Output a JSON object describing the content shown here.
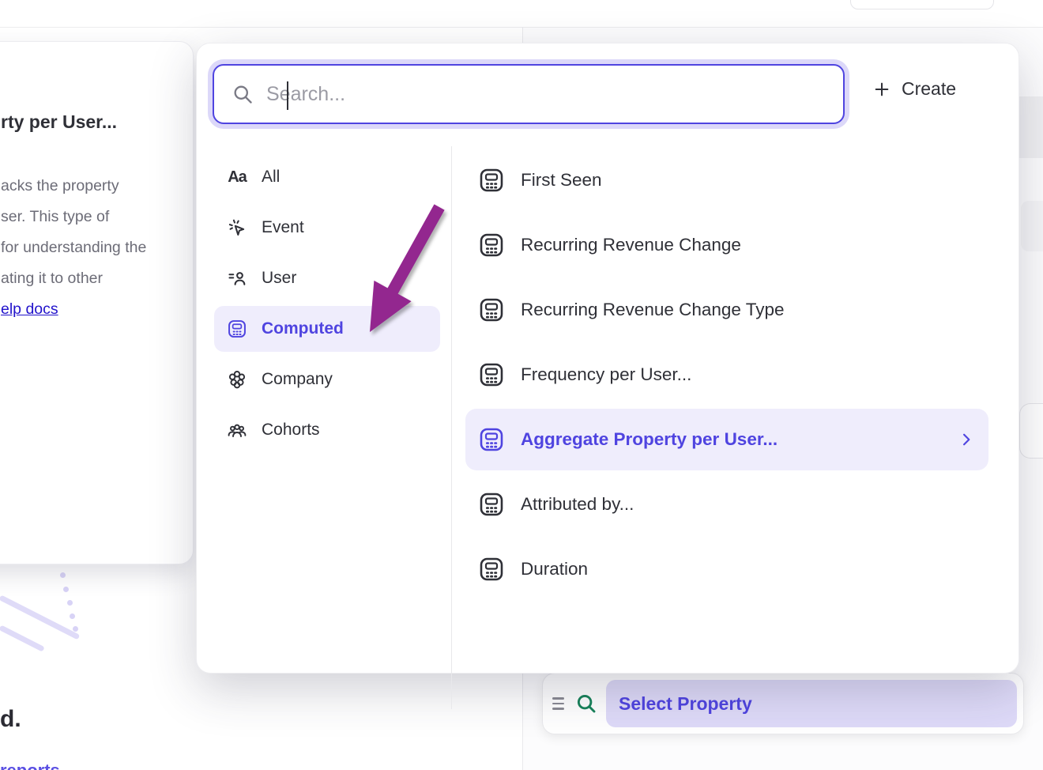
{
  "colors": {
    "accent_purple": "#4f44e0",
    "highlight_bg": "#efedfc",
    "arrow_magenta": "#93278f",
    "link_blue": "#2213cb",
    "search_green": "#17835a"
  },
  "tooltip": {
    "title_fragment": "rty per User...",
    "body_lines": [
      "acks the property",
      "ser. This type of",
      "for understanding the",
      "ating it to other"
    ],
    "link_fragment": "elp docs"
  },
  "modal": {
    "search": {
      "placeholder": "Search...",
      "value": ""
    },
    "create_label": "Create",
    "categories": [
      {
        "id": "all",
        "label": "All",
        "icon": "aa-icon",
        "selected": false
      },
      {
        "id": "event",
        "label": "Event",
        "icon": "event-icon",
        "selected": false
      },
      {
        "id": "user",
        "label": "User",
        "icon": "user-icon",
        "selected": false
      },
      {
        "id": "computed",
        "label": "Computed",
        "icon": "calculator-icon",
        "selected": true
      },
      {
        "id": "company",
        "label": "Company",
        "icon": "company-icon",
        "selected": false
      },
      {
        "id": "cohorts",
        "label": "Cohorts",
        "icon": "cohorts-icon",
        "selected": false
      }
    ],
    "properties": [
      {
        "label": "First Seen",
        "selected": false
      },
      {
        "label": "Recurring Revenue Change",
        "selected": false
      },
      {
        "label": "Recurring Revenue Change Type",
        "selected": false
      },
      {
        "label": "Frequency per User...",
        "selected": false
      },
      {
        "label": "Aggregate Property per User...",
        "selected": true
      },
      {
        "label": "Attributed by...",
        "selected": false
      },
      {
        "label": "Duration",
        "selected": false
      }
    ]
  },
  "bottom_bar": {
    "select_property_label": "Select Property"
  },
  "page_fragments": {
    "heading_fragment": "d.",
    "purple_text_fragment": "reports"
  }
}
